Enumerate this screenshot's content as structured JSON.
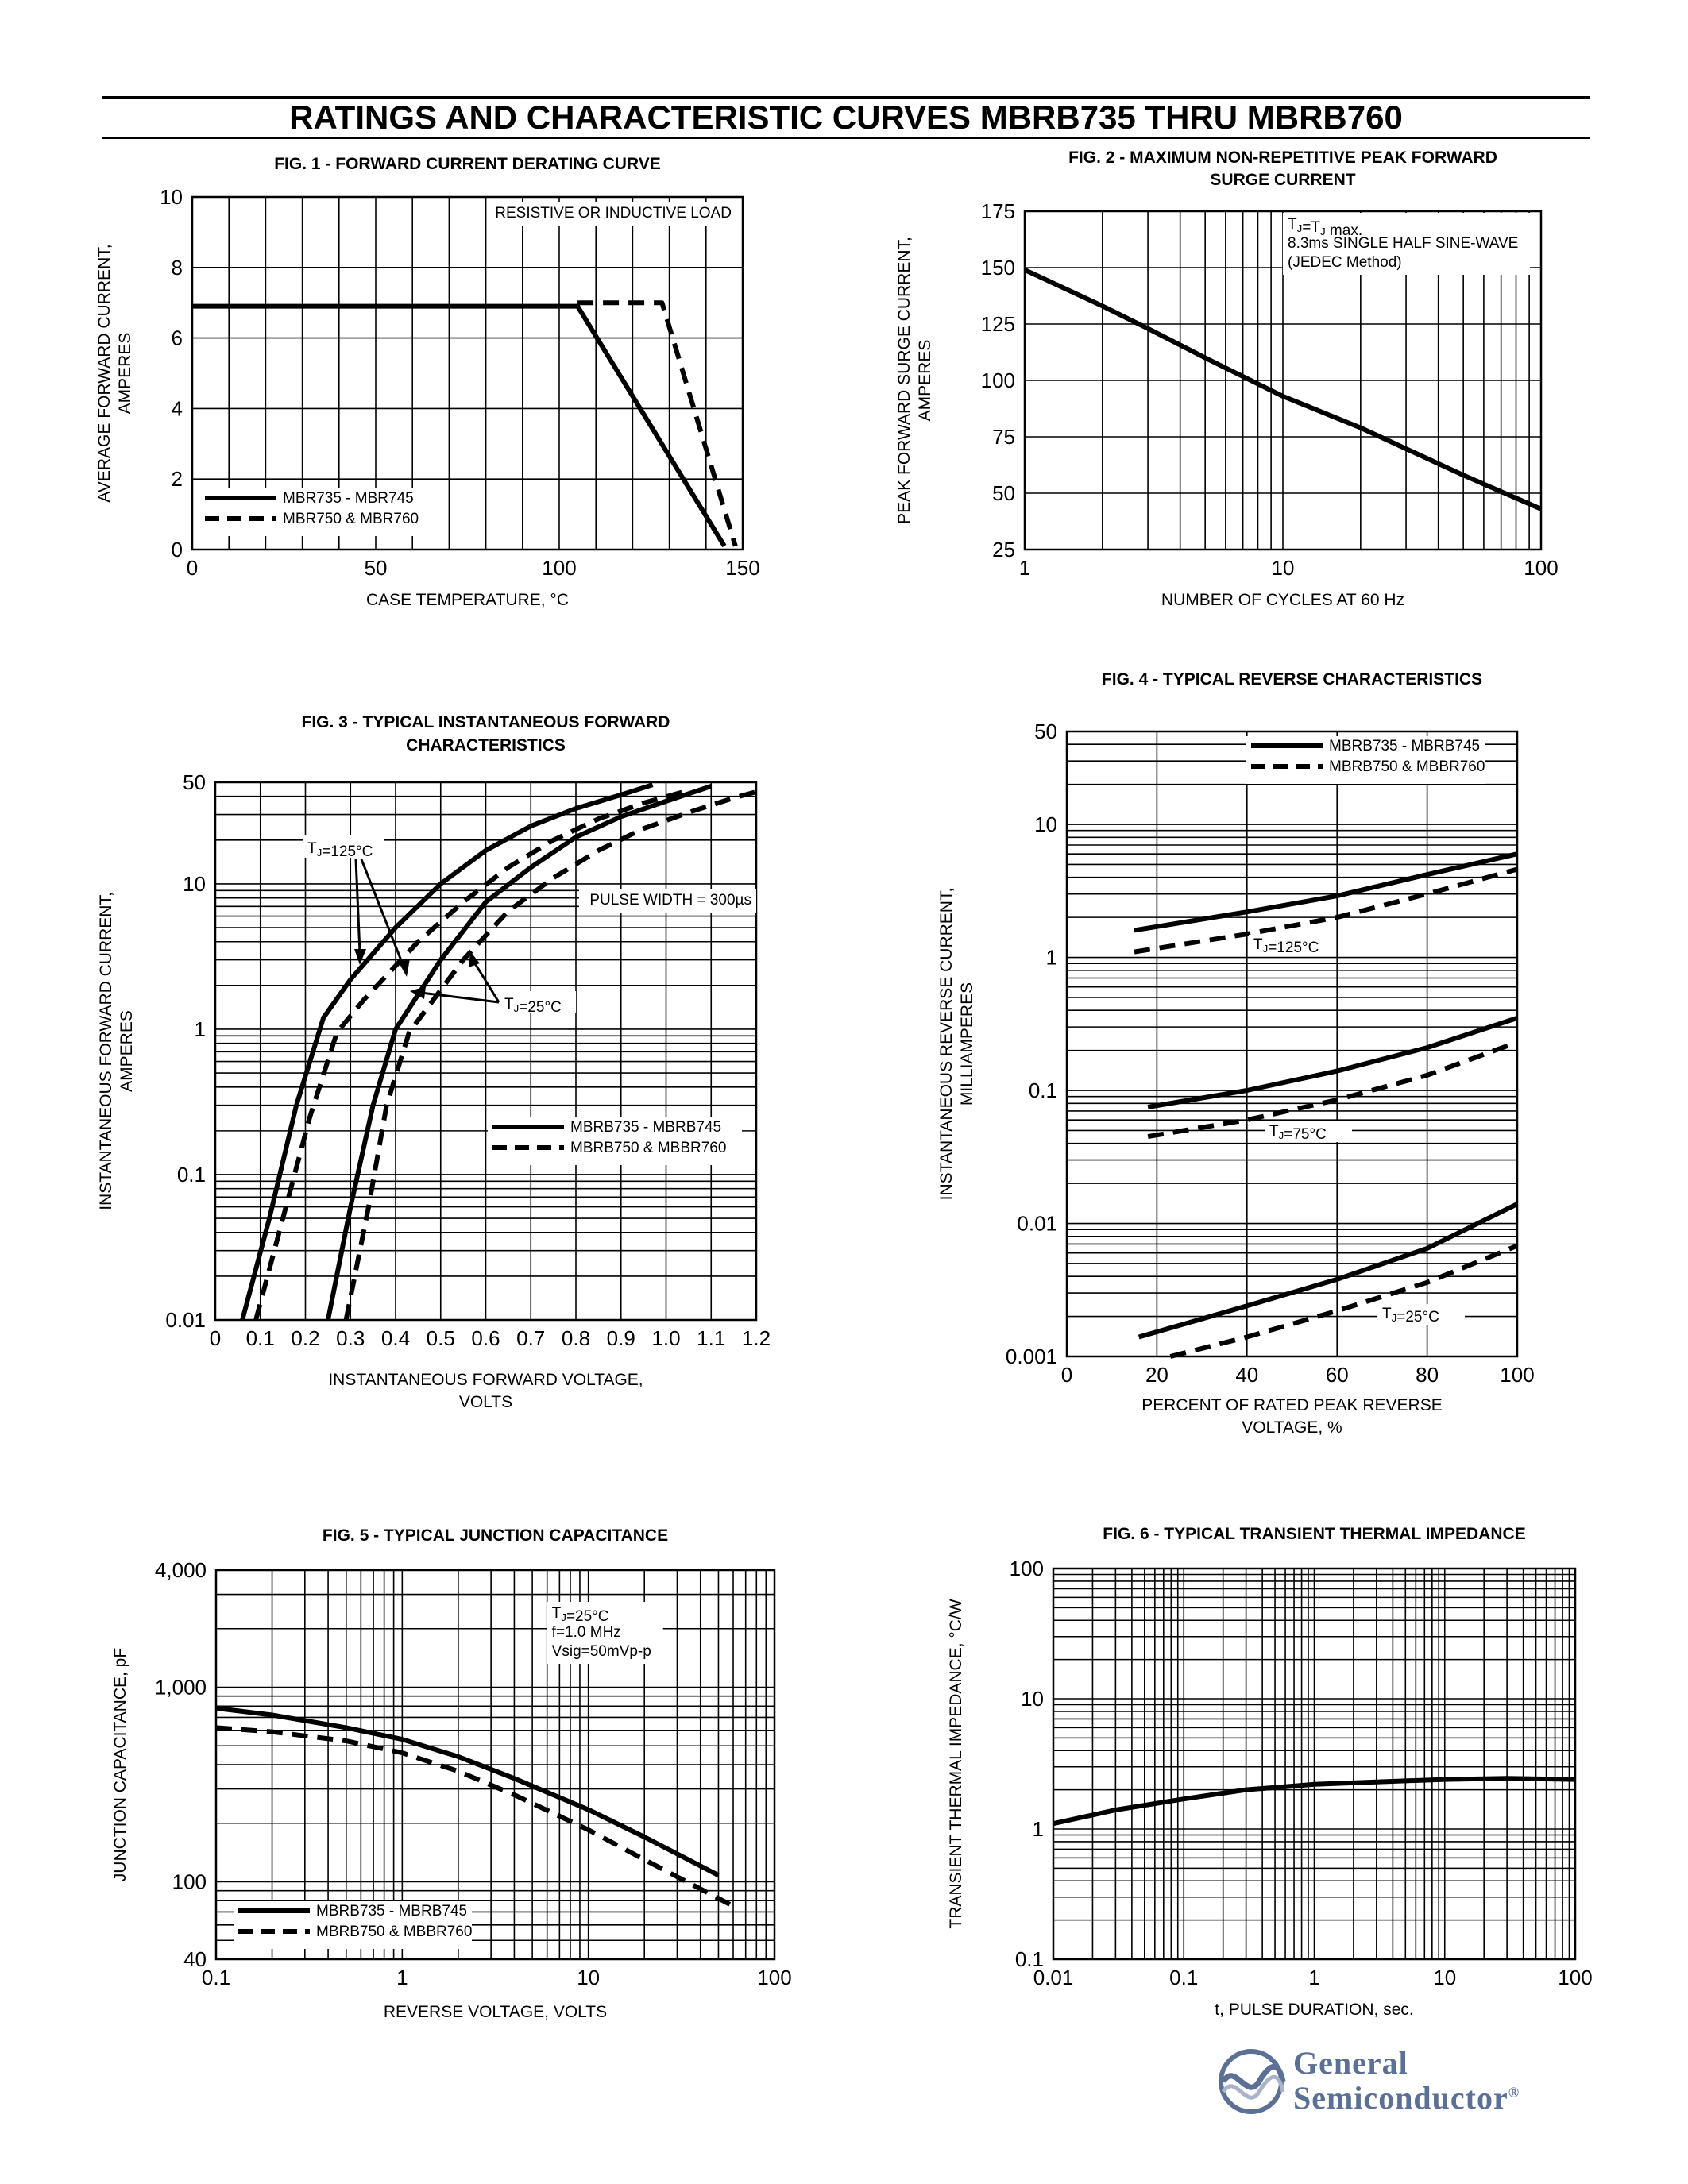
{
  "page_title": "RATINGS AND CHARACTERISTIC CURVES MBRB735 THRU MBRB760",
  "logo": {
    "line1": "General",
    "line2": "Semiconductor",
    "mark": "®"
  },
  "colors": {
    "ink": "#000000",
    "logo": "#5c6f95"
  },
  "chart_data": [
    {
      "id": "fig1",
      "type": "line",
      "title": [
        "FIG. 1 - FORWARD CURRENT DERATING CURVE"
      ],
      "xlabel": [
        "CASE TEMPERATURE, °C"
      ],
      "ylabel": [
        "AVERAGE FORWARD CURRENT,",
        "AMPERES"
      ],
      "xscale": "linear",
      "yscale": "linear",
      "xlim": [
        0,
        150
      ],
      "ylim": [
        0,
        10
      ],
      "xticks": [
        0,
        50,
        100,
        150
      ],
      "xtick_labels": [
        "0",
        "50",
        "100",
        "150"
      ],
      "yticks": [
        0,
        2,
        4,
        6,
        8,
        10
      ],
      "ytick_labels": [
        "0",
        "2",
        "4",
        "6",
        "8",
        "10"
      ],
      "xgrid": [
        10,
        20,
        30,
        40,
        50,
        60,
        70,
        80,
        90,
        100,
        110,
        120,
        130,
        140
      ],
      "ygrid": [
        2,
        4,
        6,
        8
      ],
      "grid": true,
      "notes": [
        {
          "text": "RESISTIVE OR INDUCTIVE LOAD",
          "pos": "top-right"
        }
      ],
      "legend_position": "bottom-left",
      "series": [
        {
          "name": "MBR735 - MBR745",
          "dash": "solid",
          "points": [
            [
              0,
              6.9
            ],
            [
              105,
              6.9
            ],
            [
              145,
              0.1
            ]
          ]
        },
        {
          "name": "MBR750 & MBR760",
          "dash": "dashed",
          "points": [
            [
              105,
              7.0
            ],
            [
              128,
              7.0
            ],
            [
              148,
              0.1
            ]
          ]
        }
      ]
    },
    {
      "id": "fig2",
      "type": "line",
      "title": [
        "FIG. 2 - MAXIMUM NON-REPETITIVE PEAK FORWARD",
        "SURGE CURRENT"
      ],
      "xlabel": [
        "NUMBER OF CYCLES AT 60 Hz"
      ],
      "ylabel": [
        "PEAK FORWARD SURGE CURRENT,",
        "AMPERES"
      ],
      "xscale": "log",
      "yscale": "linear",
      "xlim": [
        1,
        100
      ],
      "ylim": [
        25,
        175
      ],
      "xticks": [
        1,
        10,
        100
      ],
      "xtick_labels": [
        "1",
        "10",
        "100"
      ],
      "yticks": [
        25,
        50,
        75,
        100,
        125,
        150,
        175
      ],
      "ytick_labels": [
        "25",
        "50",
        "75",
        "100",
        "125",
        "150",
        "175"
      ],
      "xgrid": [
        2,
        3,
        4,
        5,
        6,
        7,
        8,
        9,
        10,
        20,
        30,
        40,
        50,
        60,
        70,
        80,
        90
      ],
      "ygrid": [
        50,
        75,
        100,
        125,
        150
      ],
      "grid": true,
      "notes": [
        {
          "lines": [
            "TJ=TJ max.",
            "8.3ms SINGLE HALF SINE-WAVE",
            "(JEDEC Method)"
          ],
          "pos": "top-right"
        }
      ],
      "series": [
        {
          "dash": "solid",
          "points": [
            [
              1,
              149
            ],
            [
              2,
              133
            ],
            [
              3,
              123
            ],
            [
              5,
              110
            ],
            [
              10,
              93
            ],
            [
              20,
              79
            ],
            [
              50,
              58
            ],
            [
              100,
              43
            ]
          ]
        }
      ]
    },
    {
      "id": "fig3",
      "type": "line",
      "title": [
        "FIG. 3 - TYPICAL INSTANTANEOUS FORWARD",
        "CHARACTERISTICS"
      ],
      "xlabel": [
        "INSTANTANEOUS FORWARD VOLTAGE,",
        "VOLTS"
      ],
      "ylabel": [
        "INSTANTANEOUS FORWARD CURRENT,",
        "AMPERES"
      ],
      "xscale": "linear",
      "yscale": "log",
      "xlim": [
        0,
        1.2
      ],
      "ylim": [
        0.01,
        50
      ],
      "xticks": [
        0,
        0.1,
        0.2,
        0.3,
        0.4,
        0.5,
        0.6,
        0.7,
        0.8,
        0.9,
        1.0,
        1.1,
        1.2
      ],
      "xtick_labels": [
        "0",
        "0.1",
        "0.2",
        "0.3",
        "0.4",
        "0.5",
        "0.6",
        "0.7",
        "0.8",
        "0.9",
        "1.0",
        "1.1",
        "1.2"
      ],
      "yticks": [
        0.01,
        0.1,
        1,
        10,
        50
      ],
      "ytick_labels": [
        "0.01",
        "0.1",
        "1",
        "10",
        "50"
      ],
      "xgrid": [
        0.1,
        0.2,
        0.3,
        0.4,
        0.5,
        0.6,
        0.7,
        0.8,
        0.9,
        1.0,
        1.1
      ],
      "ygrid": [
        0.02,
        0.03,
        0.04,
        0.05,
        0.06,
        0.07,
        0.08,
        0.09,
        0.1,
        0.2,
        0.3,
        0.4,
        0.5,
        0.6,
        0.7,
        0.8,
        0.9,
        1,
        2,
        3,
        4,
        5,
        6,
        7,
        8,
        9,
        10,
        20,
        30,
        40
      ],
      "grid": true,
      "notes": [
        {
          "text": "PULSE WIDTH = 300µs",
          "pos": "right"
        }
      ],
      "annotations": [
        {
          "text": "TJ=125°C",
          "arrows": 2
        },
        {
          "text": "TJ=25°C",
          "arrows": 2
        }
      ],
      "legend_position": "bottom-right",
      "series": [
        {
          "name": "MBRB735 - MBRB745",
          "condition": "TJ=125°C",
          "dash": "solid",
          "points": [
            [
              0.06,
              0.01
            ],
            [
              0.12,
              0.05
            ],
            [
              0.18,
              0.3
            ],
            [
              0.24,
              1.2
            ],
            [
              0.3,
              2.2
            ],
            [
              0.4,
              5
            ],
            [
              0.5,
              10
            ],
            [
              0.6,
              17
            ],
            [
              0.7,
              25
            ],
            [
              0.8,
              33
            ],
            [
              0.9,
              41
            ],
            [
              0.97,
              48
            ]
          ]
        },
        {
          "name": "MBRB750 & MBBR760",
          "condition": "TJ=125°C",
          "dash": "dashed",
          "points": [
            [
              0.09,
              0.01
            ],
            [
              0.15,
              0.05
            ],
            [
              0.21,
              0.25
            ],
            [
              0.27,
              0.95
            ],
            [
              0.33,
              1.6
            ],
            [
              0.45,
              4
            ],
            [
              0.55,
              7.5
            ],
            [
              0.65,
              13
            ],
            [
              0.75,
              20
            ],
            [
              0.85,
              28
            ],
            [
              0.95,
              36
            ],
            [
              1.05,
              44
            ]
          ]
        },
        {
          "name": "MBRB735 - MBRB745",
          "condition": "TJ=25°C",
          "dash": "solid",
          "points": [
            [
              0.25,
              0.01
            ],
            [
              0.3,
              0.06
            ],
            [
              0.35,
              0.3
            ],
            [
              0.4,
              1.0
            ],
            [
              0.5,
              3
            ],
            [
              0.6,
              7.5
            ],
            [
              0.7,
              13
            ],
            [
              0.8,
              21
            ],
            [
              0.9,
              29
            ],
            [
              1.0,
              37
            ],
            [
              1.1,
              47
            ]
          ]
        },
        {
          "name": "MBRB750 & MBBR760",
          "condition": "TJ=25°C",
          "dash": "dashed",
          "points": [
            [
              0.29,
              0.01
            ],
            [
              0.34,
              0.06
            ],
            [
              0.38,
              0.3
            ],
            [
              0.43,
              0.95
            ],
            [
              0.55,
              3
            ],
            [
              0.65,
              6.5
            ],
            [
              0.75,
              11
            ],
            [
              0.85,
              17
            ],
            [
              0.95,
              24
            ],
            [
              1.05,
              31
            ],
            [
              1.15,
              39
            ],
            [
              1.2,
              43
            ]
          ]
        }
      ]
    },
    {
      "id": "fig4",
      "type": "line",
      "title": [
        "FIG. 4 - TYPICAL REVERSE CHARACTERISTICS"
      ],
      "xlabel": [
        "PERCENT OF RATED PEAK REVERSE",
        "VOLTAGE, %"
      ],
      "ylabel": [
        "INSTANTANEOUS REVERSE CURRENT,",
        "MILLIAMPERES"
      ],
      "xscale": "linear",
      "yscale": "log",
      "xlim": [
        0,
        100
      ],
      "ylim": [
        0.001,
        50
      ],
      "xticks": [
        0,
        20,
        40,
        60,
        80,
        100
      ],
      "xtick_labels": [
        "0",
        "20",
        "40",
        "60",
        "80",
        "100"
      ],
      "yticks": [
        0.001,
        0.01,
        0.1,
        1,
        10,
        50
      ],
      "ytick_labels": [
        "0.001",
        "0.01",
        "0.1",
        "1",
        "10",
        "50"
      ],
      "xgrid": [
        20,
        40,
        60,
        80
      ],
      "ygrid": [
        0.002,
        0.003,
        0.004,
        0.005,
        0.006,
        0.007,
        0.008,
        0.009,
        0.01,
        0.02,
        0.03,
        0.04,
        0.05,
        0.06,
        0.07,
        0.08,
        0.09,
        0.1,
        0.2,
        0.3,
        0.4,
        0.5,
        0.6,
        0.7,
        0.8,
        0.9,
        1,
        2,
        3,
        4,
        5,
        6,
        7,
        8,
        9,
        10,
        20,
        30,
        40
      ],
      "grid": true,
      "legend_position": "top-right",
      "curve_labels": [
        "TJ=125°C",
        "TJ=75°C",
        "TJ=25°C"
      ],
      "series": [
        {
          "name": "MBRB735 - MBRB745",
          "condition": "TJ=125°C",
          "dash": "solid",
          "points": [
            [
              15,
              1.6
            ],
            [
              40,
              2.2
            ],
            [
              60,
              2.9
            ],
            [
              80,
              4.2
            ],
            [
              100,
              6.0
            ]
          ]
        },
        {
          "name": "MBRB750 & MBBR760",
          "condition": "TJ=125°C",
          "dash": "dashed",
          "points": [
            [
              15,
              1.1
            ],
            [
              40,
              1.5
            ],
            [
              60,
              2.0
            ],
            [
              80,
              3.0
            ],
            [
              100,
              4.6
            ]
          ]
        },
        {
          "name": "MBRB735 - MBRB745",
          "condition": "TJ=75°C",
          "dash": "solid",
          "points": [
            [
              18,
              0.075
            ],
            [
              40,
              0.1
            ],
            [
              60,
              0.14
            ],
            [
              80,
              0.21
            ],
            [
              100,
              0.35
            ]
          ]
        },
        {
          "name": "MBRB750 & MBBR760",
          "condition": "TJ=75°C",
          "dash": "dashed",
          "points": [
            [
              18,
              0.045
            ],
            [
              40,
              0.06
            ],
            [
              60,
              0.085
            ],
            [
              80,
              0.13
            ],
            [
              100,
              0.23
            ]
          ]
        },
        {
          "name": "MBRB735 - MBRB745",
          "condition": "TJ=25°C",
          "dash": "solid",
          "points": [
            [
              16,
              0.0014
            ],
            [
              40,
              0.0024
            ],
            [
              60,
              0.0038
            ],
            [
              80,
              0.0065
            ],
            [
              100,
              0.014
            ]
          ]
        },
        {
          "name": "MBRB750 & MBBR760",
          "condition": "TJ=25°C",
          "dash": "dashed",
          "points": [
            [
              23,
              0.001
            ],
            [
              40,
              0.0014
            ],
            [
              60,
              0.0022
            ],
            [
              80,
              0.0036
            ],
            [
              100,
              0.0068
            ]
          ]
        }
      ]
    },
    {
      "id": "fig5",
      "type": "line",
      "title": [
        "FIG. 5 - TYPICAL JUNCTION CAPACITANCE"
      ],
      "xlabel": [
        "REVERSE VOLTAGE, VOLTS"
      ],
      "ylabel": [
        "JUNCTION CAPACITANCE, pF"
      ],
      "xscale": "log",
      "yscale": "log",
      "xlim": [
        0.1,
        100
      ],
      "ylim": [
        40,
        4000
      ],
      "xticks": [
        0.1,
        1,
        10,
        100
      ],
      "xtick_labels": [
        "0.1",
        "1",
        "10",
        "100"
      ],
      "yticks": [
        40,
        100,
        1000,
        4000
      ],
      "ytick_labels": [
        "40",
        "100",
        "1,000",
        "4,000"
      ],
      "xgrid": [
        0.2,
        0.3,
        0.4,
        0.5,
        0.6,
        0.7,
        0.8,
        0.9,
        1,
        2,
        3,
        4,
        5,
        6,
        7,
        8,
        9,
        10,
        20,
        30,
        40,
        50,
        60,
        70,
        80,
        90
      ],
      "ygrid": [
        50,
        60,
        70,
        80,
        90,
        100,
        200,
        300,
        400,
        500,
        600,
        700,
        800,
        900,
        1000,
        2000,
        3000
      ],
      "grid": true,
      "notes": [
        {
          "lines": [
            "TJ=25°C",
            "f=1.0 MHz",
            "Vsig=50mVp-p"
          ],
          "pos": "top-right"
        }
      ],
      "legend_position": "bottom-left",
      "series": [
        {
          "name": "MBRB735 - MBRB745",
          "dash": "solid",
          "points": [
            [
              0.1,
              780
            ],
            [
              0.2,
              720
            ],
            [
              0.5,
              620
            ],
            [
              1,
              540
            ],
            [
              2,
              440
            ],
            [
              4,
              340
            ],
            [
              10,
              235
            ],
            [
              20,
              170
            ],
            [
              50,
              108
            ]
          ]
        },
        {
          "name": "MBRB750 & MBBR760",
          "dash": "dashed",
          "points": [
            [
              0.1,
              620
            ],
            [
              0.2,
              590
            ],
            [
              0.5,
              530
            ],
            [
              1,
              460
            ],
            [
              2,
              370
            ],
            [
              4,
              280
            ],
            [
              10,
              185
            ],
            [
              20,
              130
            ],
            [
              40,
              92
            ],
            [
              60,
              75
            ]
          ]
        }
      ]
    },
    {
      "id": "fig6",
      "type": "line",
      "title": [
        "FIG. 6 - TYPICAL TRANSIENT THERMAL IMPEDANCE"
      ],
      "xlabel": [
        "t, PULSE DURATION, sec."
      ],
      "ylabel": [
        "TRANSIENT THERMAL IMPEDANCE, °C/W"
      ],
      "xscale": "log",
      "yscale": "log",
      "xlim": [
        0.01,
        100
      ],
      "ylim": [
        0.1,
        100
      ],
      "xticks": [
        0.01,
        0.1,
        1,
        10,
        100
      ],
      "xtick_labels": [
        "0.01",
        "0.1",
        "1",
        "10",
        "100"
      ],
      "yticks": [
        0.1,
        1,
        10,
        100
      ],
      "ytick_labels": [
        "0.1",
        "1",
        "10",
        "100"
      ],
      "xgrid": [
        0.02,
        0.03,
        0.04,
        0.05,
        0.06,
        0.07,
        0.08,
        0.09,
        0.1,
        0.2,
        0.3,
        0.4,
        0.5,
        0.6,
        0.7,
        0.8,
        0.9,
        1,
        2,
        3,
        4,
        5,
        6,
        7,
        8,
        9,
        10,
        20,
        30,
        40,
        50,
        60,
        70,
        80,
        90
      ],
      "ygrid": [
        0.2,
        0.3,
        0.4,
        0.5,
        0.6,
        0.7,
        0.8,
        0.9,
        1,
        2,
        3,
        4,
        5,
        6,
        7,
        8,
        9,
        10,
        20,
        30,
        40,
        50,
        60,
        70,
        80,
        90
      ],
      "grid": true,
      "series": [
        {
          "dash": "solid",
          "points": [
            [
              0.01,
              1.1
            ],
            [
              0.03,
              1.4
            ],
            [
              0.1,
              1.7
            ],
            [
              0.3,
              2.0
            ],
            [
              1,
              2.2
            ],
            [
              3,
              2.3
            ],
            [
              10,
              2.4
            ],
            [
              30,
              2.45
            ],
            [
              100,
              2.4
            ]
          ]
        }
      ]
    }
  ]
}
